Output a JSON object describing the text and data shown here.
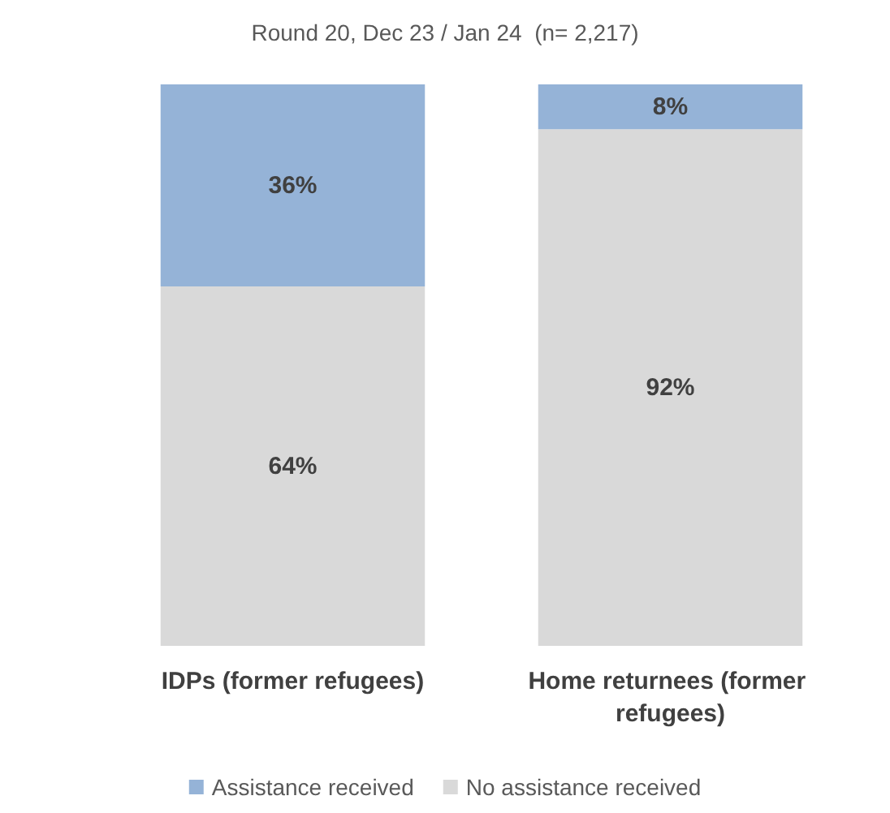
{
  "chart_data": {
    "type": "bar",
    "title": "Round 20, Dec 23 / Jan 24  (n= 2,217)",
    "categories": [
      "IDPs (former refugees)",
      "Home returnees (former refugees)"
    ],
    "stacked": true,
    "legend": "bottom",
    "series": [
      {
        "name": "No assistance received",
        "color": "#d9d9d9",
        "values": [
          64,
          92
        ],
        "value_labels": [
          "64%",
          "92%"
        ]
      },
      {
        "name": "Assistance received",
        "color": "#95b3d7",
        "values": [
          36,
          8
        ],
        "value_labels": [
          "36%",
          "8%"
        ]
      }
    ]
  }
}
